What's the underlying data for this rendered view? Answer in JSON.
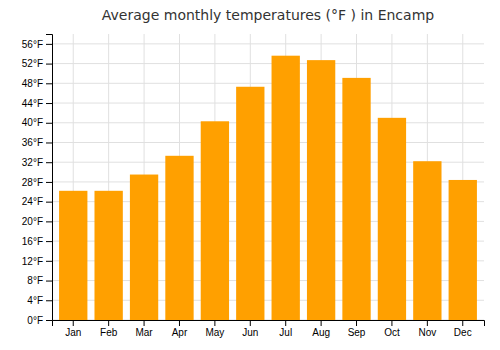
{
  "chart_data": {
    "type": "bar",
    "title": "Average monthly temperatures (°F ) in Encamp",
    "categories": [
      "Jan",
      "Feb",
      "Mar",
      "Apr",
      "May",
      "Jun",
      "Jul",
      "Aug",
      "Sep",
      "Oct",
      "Nov",
      "Dec"
    ],
    "values": [
      26.2,
      26.2,
      29.5,
      33.3,
      40.3,
      47.3,
      53.6,
      52.7,
      49.1,
      41.0,
      32.2,
      28.4
    ],
    "color": "#FFA000",
    "ylim": [
      0,
      58
    ],
    "yticks": [
      {
        "value": 0,
        "label": "0°F"
      },
      {
        "value": 4,
        "label": "4°F"
      },
      {
        "value": 8,
        "label": "8°F"
      },
      {
        "value": 12,
        "label": "12°F"
      },
      {
        "value": 16,
        "label": "16°F"
      },
      {
        "value": 20,
        "label": "20°F"
      },
      {
        "value": 24,
        "label": "24°F"
      },
      {
        "value": 28,
        "label": "28°F"
      },
      {
        "value": 32,
        "label": "32°F"
      },
      {
        "value": 36,
        "label": "36°F"
      },
      {
        "value": 40,
        "label": "40°F"
      },
      {
        "value": 44,
        "label": "44°F"
      },
      {
        "value": 48,
        "label": "48°F"
      },
      {
        "value": 52,
        "label": "52°F"
      },
      {
        "value": 56,
        "label": "56°F"
      }
    ],
    "grid": true
  }
}
